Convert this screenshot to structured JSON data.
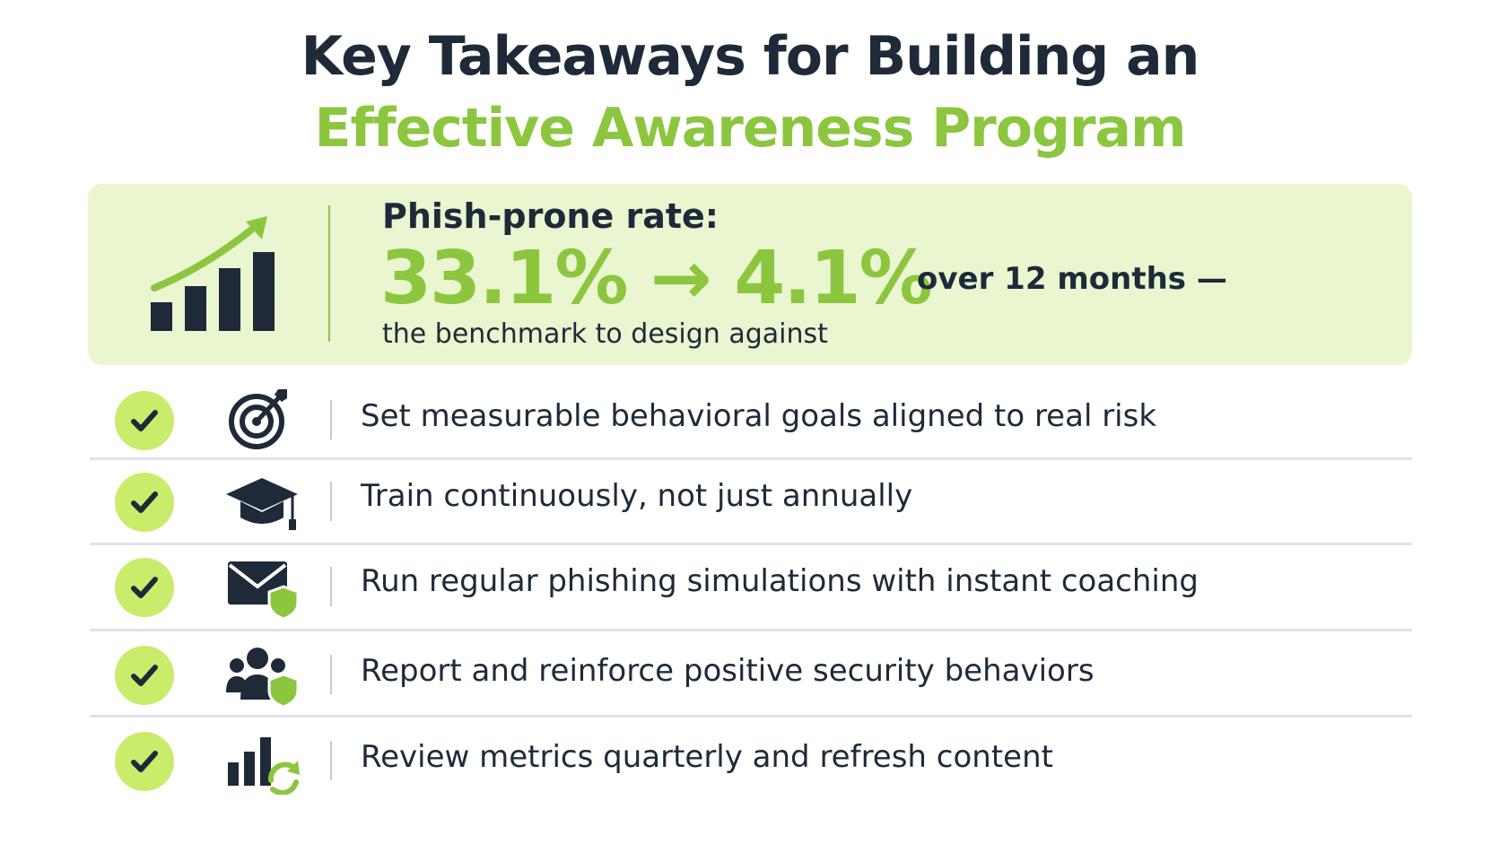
{
  "title": {
    "line1": "Key Takeaways for Building an",
    "line2": "Effective Awareness Program"
  },
  "stat": {
    "icon": "growth-chart-icon",
    "label": "Phish-prone rate:",
    "value": "33.1% → 4.1%",
    "period": "over 12 months —",
    "note": "the benchmark to design against"
  },
  "takeaways": [
    {
      "icon": "target-icon",
      "text": "Set measurable behavioral goals aligned to real risk"
    },
    {
      "icon": "graduation-cap-icon",
      "text": "Train continuously, not just annually"
    },
    {
      "icon": "shielded-envelope-icon",
      "text": "Run regular phishing simulations with instant coaching"
    },
    {
      "icon": "shielded-team-icon",
      "text": "Report and reinforce positive security behaviors"
    },
    {
      "icon": "chart-refresh-icon",
      "text": "Review metrics quarterly and refresh content"
    }
  ],
  "colors": {
    "accent": "#8cc63f",
    "dark": "#1e2a38",
    "card_bg": "#eaf6cf",
    "check_bg": "#c9ec6b"
  }
}
